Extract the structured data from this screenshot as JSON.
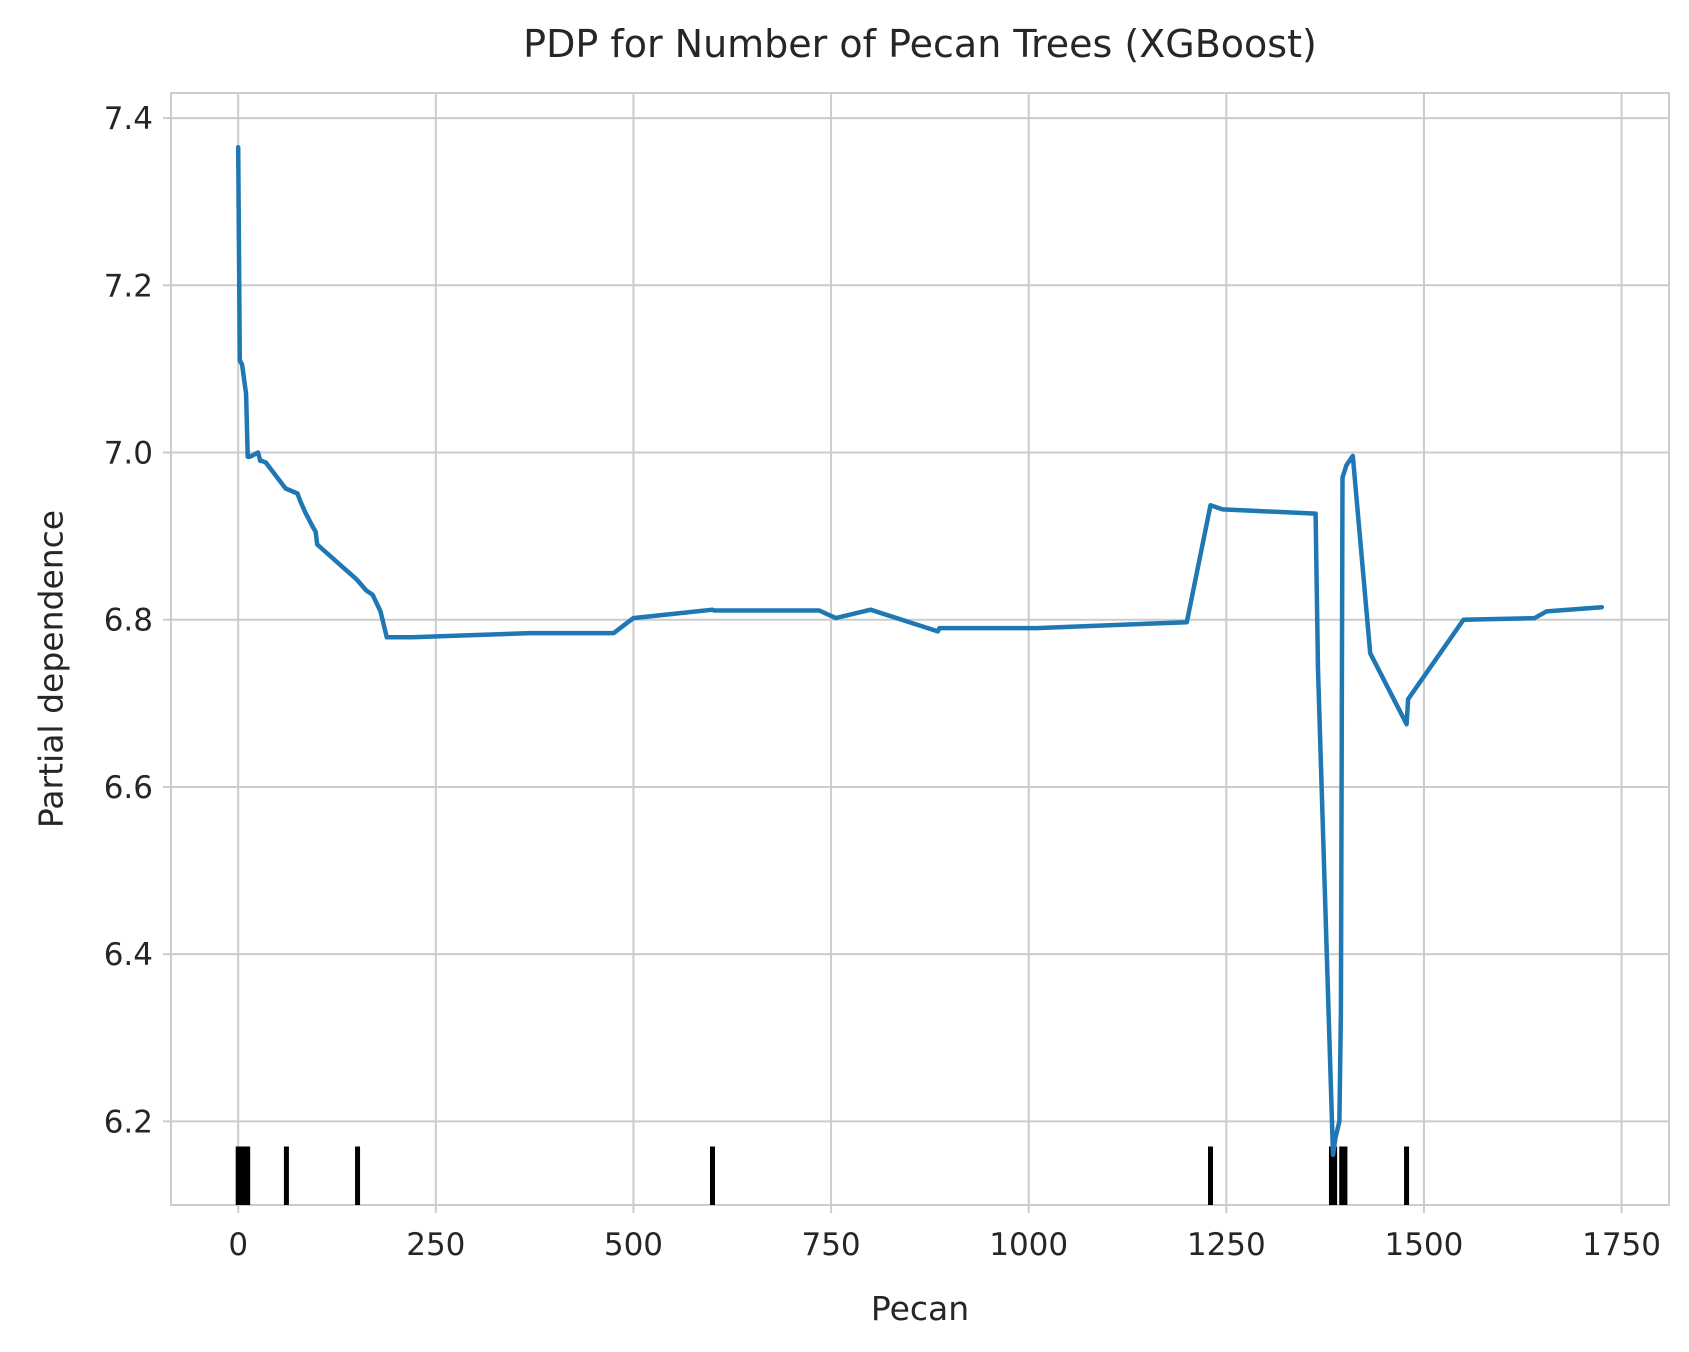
{
  "chart_data": {
    "type": "line",
    "title": "PDP for Number of Pecan Trees (XGBoost)",
    "xlabel": "Pecan",
    "ylabel": "Partial dependence",
    "xlim": [
      -85,
      1810
    ],
    "ylim": [
      6.1,
      7.43
    ],
    "x_ticks": [
      0,
      250,
      500,
      750,
      1000,
      1250,
      1500,
      1750
    ],
    "x_tick_labels": [
      "0",
      "250",
      "500",
      "750",
      "1000",
      "1250",
      "1500",
      "1750"
    ],
    "y_ticks": [
      6.2,
      6.4,
      6.6,
      6.8,
      7.0,
      7.2,
      7.4
    ],
    "y_tick_labels": [
      "6.2",
      "6.4",
      "6.6",
      "6.8",
      "7.0",
      "7.2",
      "7.4"
    ],
    "grid": true,
    "line_color": "#1f77b4",
    "rug_color": "#000000",
    "series": [
      {
        "x": [
          0,
          2,
          5,
          10,
          12,
          15,
          25,
          28,
          30,
          35,
          60,
          75,
          78,
          85,
          95,
          98,
          100,
          150,
          162,
          170,
          180,
          188,
          220,
          370,
          475,
          500,
          600,
          602,
          735,
          756,
          800,
          885,
          887,
          890,
          1010,
          1200,
          1230,
          1245,
          1363,
          1366,
          1385,
          1388,
          1393,
          1395,
          1397,
          1402,
          1410,
          1432,
          1478,
          1480,
          1550,
          1640,
          1655,
          1725
        ],
        "y": [
          7.365,
          7.11,
          7.105,
          7.07,
          6.995,
          6.995,
          7.0,
          6.99,
          6.99,
          6.988,
          6.957,
          6.951,
          6.943,
          6.928,
          6.91,
          6.905,
          6.89,
          6.848,
          6.835,
          6.83,
          6.81,
          6.779,
          6.779,
          6.784,
          6.784,
          6.802,
          6.812,
          6.811,
          6.811,
          6.802,
          6.812,
          6.786,
          6.79,
          6.79,
          6.79,
          6.797,
          6.937,
          6.932,
          6.927,
          6.74,
          6.16,
          6.18,
          6.2,
          6.33,
          6.97,
          6.985,
          6.996,
          6.76,
          6.675,
          6.705,
          6.8,
          6.802,
          6.81,
          6.815
        ]
      }
    ],
    "rug": [
      0,
      2,
      4,
      6,
      8,
      10,
      12,
      61,
      151,
      600,
      1230,
      1383,
      1387,
      1396,
      1400,
      1478
    ]
  }
}
